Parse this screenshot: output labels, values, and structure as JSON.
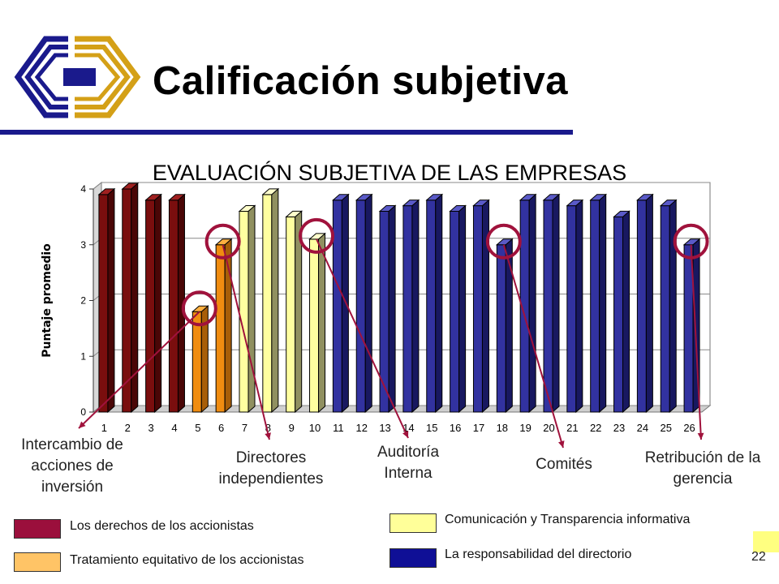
{
  "slide": {
    "title": "Calificación subjetiva",
    "page_number": "22",
    "accent_color": "#1a1a8c",
    "corner_box_color": "#ffff80"
  },
  "logo": {
    "icon": "company-logo-icon",
    "colors": [
      "#1a1a8c",
      "#d4a017"
    ]
  },
  "chart_data": {
    "type": "bar",
    "title": "EVALUACIÓN SUBJETIVA DE LAS EMPRESAS",
    "xlabel": "",
    "ylabel": "Puntaje promedio",
    "ylim": [
      0,
      4
    ],
    "yticks": [
      "0",
      "1",
      "2",
      "3",
      "4"
    ],
    "grid": true,
    "categories": [
      "1",
      "2",
      "3",
      "4",
      "5",
      "6",
      "7",
      "8",
      "9",
      "10",
      "11",
      "12",
      "13",
      "14",
      "15",
      "16",
      "17",
      "18",
      "19",
      "20",
      "21",
      "22",
      "23",
      "24",
      "25",
      "26"
    ],
    "values": [
      3.9,
      4.0,
      3.8,
      3.8,
      1.8,
      3.0,
      3.6,
      3.9,
      3.5,
      3.1,
      3.8,
      3.8,
      3.6,
      3.7,
      3.8,
      3.6,
      3.7,
      3.0,
      3.8,
      3.8,
      3.7,
      3.8,
      3.5,
      3.8,
      3.7,
      3.0
    ],
    "groups": [
      1,
      1,
      1,
      1,
      2,
      2,
      3,
      3,
      3,
      3,
      4,
      4,
      4,
      4,
      4,
      4,
      4,
      4,
      4,
      4,
      4,
      4,
      4,
      4,
      4,
      4
    ],
    "legend": [
      {
        "label": "Los derechos de los accionistas",
        "color": "#9b0f3c"
      },
      {
        "label": "Tratamiento equitativo de los accionistas",
        "color": "#ffc466"
      },
      {
        "label": "Comunicación y Transparencia informativa",
        "color": "#ffff99"
      },
      {
        "label": "La responsabilidad del directorio",
        "color": "#0f0f96"
      }
    ],
    "bar_colors": [
      {
        "front": "#7a0e0e",
        "side": "#4a0606",
        "top": "#a02020"
      },
      {
        "front": "#f08c10",
        "side": "#a85e08",
        "top": "#ffb040"
      },
      {
        "front": "#ffffa0",
        "side": "#909060",
        "top": "#ffffcc"
      },
      {
        "front": "#3232a0",
        "side": "#181860",
        "top": "#5a5ac8"
      }
    ],
    "highlighted_bars": [
      5,
      6,
      10,
      18,
      26
    ],
    "highlight_color": "#a0123c",
    "annotations": [
      {
        "text": "Intercambio de acciones de inversión",
        "bar": 5
      },
      {
        "text": "Directores independientes",
        "bar": 6
      },
      {
        "text": "Auditoría Interna",
        "bar": 10
      },
      {
        "text": "Comités",
        "bar": 18
      },
      {
        "text": "Retribución de la gerencia",
        "bar": 26
      }
    ]
  }
}
